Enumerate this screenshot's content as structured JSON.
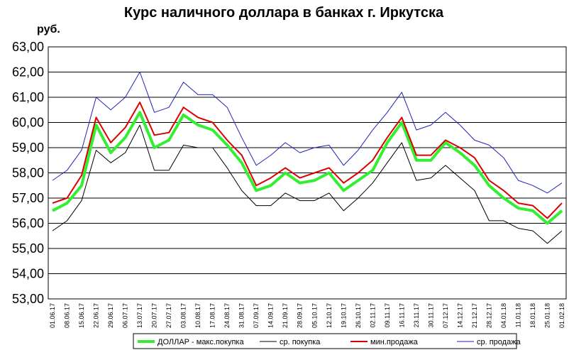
{
  "chart_data": {
    "type": "line",
    "title": "Курс наличного доллара в банках г. Иркутска",
    "ylabel": "руб.",
    "xlabel": "",
    "ylim": [
      53,
      63
    ],
    "yticks": [
      "53,00",
      "54,00",
      "55,00",
      "56,00",
      "57,00",
      "58,00",
      "59,00",
      "60,00",
      "61,00",
      "62,00",
      "63,00"
    ],
    "categories": [
      "01.06.17",
      "08.06.17",
      "15.06.17",
      "22.06.17",
      "29.06.17",
      "06.07.17",
      "13.07.17",
      "20.07.17",
      "27.07.17",
      "03.08.17",
      "10.08.17",
      "17.08.17",
      "24.08.17",
      "31.08.17",
      "07.09.17",
      "14.09.17",
      "21.09.17",
      "28.09.17",
      "05.10.17",
      "12.10.17",
      "19.10.17",
      "26.10.17",
      "02.11.17",
      "09.11.17",
      "16.11.17",
      "23.11.17",
      "30.11.17",
      "07.12.17",
      "14.12.17",
      "21.12.17",
      "28.12.17",
      "04.01.18",
      "11.01.18",
      "18.01.18",
      "25.01.18",
      "01.02.18"
    ],
    "grid": true,
    "legend_position": "bottom",
    "series": [
      {
        "name": "ДОЛЛАР - макс.покупка",
        "color": "#33ee33",
        "values": [
          56.5,
          56.8,
          57.5,
          59.9,
          58.8,
          59.4,
          60.4,
          59.0,
          59.3,
          60.3,
          59.9,
          59.7,
          59.1,
          58.4,
          57.3,
          57.5,
          58.0,
          57.6,
          57.7,
          58.0,
          57.3,
          57.7,
          58.1,
          59.2,
          60.0,
          58.5,
          58.5,
          59.2,
          58.8,
          58.3,
          57.5,
          57.0,
          56.6,
          56.5,
          56.0,
          56.5
        ]
      },
      {
        "name": "ср. покупка",
        "color": "#000000",
        "values": [
          55.7,
          56.1,
          56.9,
          58.9,
          58.4,
          58.8,
          59.9,
          58.1,
          58.1,
          59.1,
          59.0,
          59.0,
          58.2,
          57.3,
          56.7,
          56.7,
          57.2,
          56.9,
          56.9,
          57.2,
          56.5,
          57.0,
          57.6,
          58.4,
          59.2,
          57.7,
          57.8,
          58.3,
          57.8,
          57.3,
          56.1,
          56.1,
          55.8,
          55.7,
          55.2,
          55.7
        ]
      },
      {
        "name": "мин.продажа",
        "color": "#dd0000",
        "values": [
          56.8,
          57.0,
          57.9,
          60.2,
          59.2,
          59.8,
          60.8,
          59.5,
          59.6,
          60.6,
          60.2,
          60.0,
          59.3,
          58.7,
          57.5,
          57.8,
          58.2,
          57.8,
          58.0,
          58.2,
          57.6,
          58.0,
          58.5,
          59.4,
          60.2,
          58.7,
          58.7,
          59.3,
          59.0,
          58.6,
          57.7,
          57.3,
          56.8,
          56.7,
          56.2,
          56.8
        ]
      },
      {
        "name": "ср. продажа",
        "color": "#2222bb",
        "values": [
          57.7,
          58.1,
          58.9,
          61.0,
          60.5,
          61.0,
          62.0,
          60.4,
          60.6,
          61.6,
          61.1,
          61.1,
          60.6,
          59.4,
          58.3,
          58.7,
          59.2,
          58.8,
          59.0,
          59.1,
          58.3,
          58.9,
          59.7,
          60.4,
          61.2,
          59.7,
          59.9,
          60.4,
          59.9,
          59.3,
          59.1,
          58.6,
          57.7,
          57.5,
          57.2,
          57.6
        ]
      }
    ]
  }
}
